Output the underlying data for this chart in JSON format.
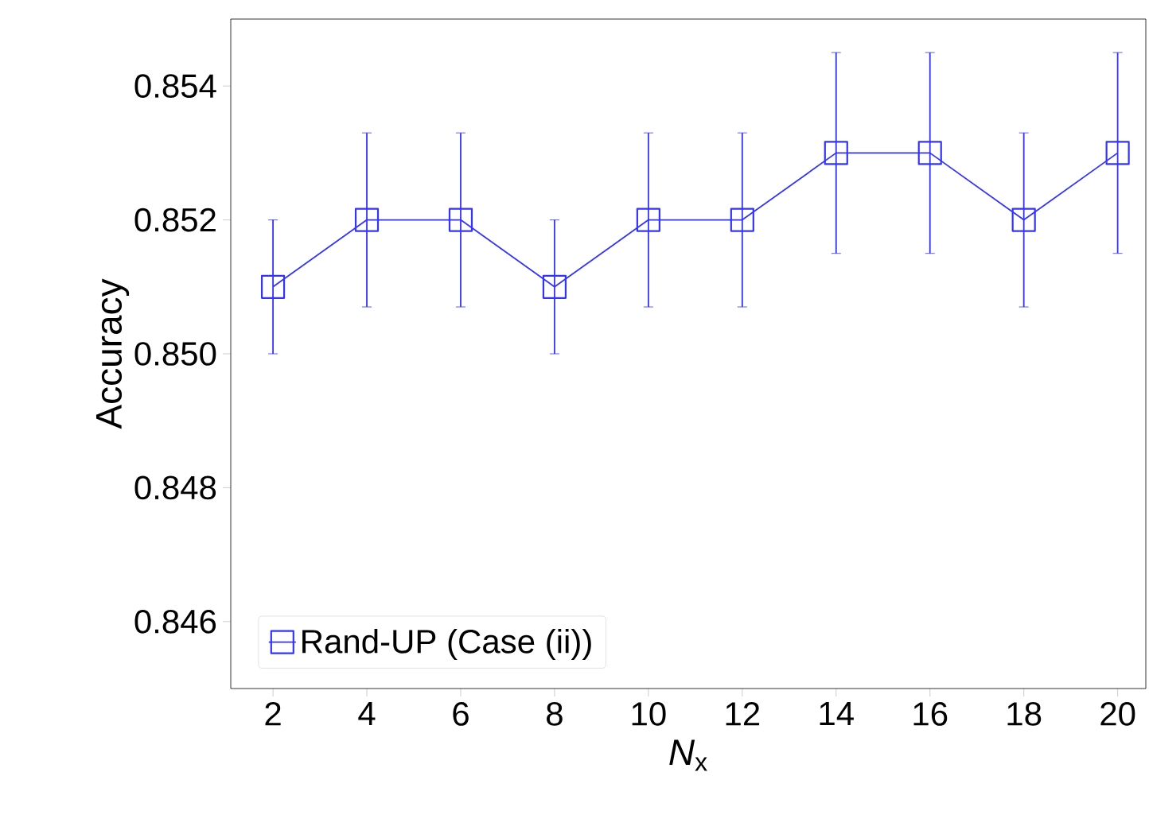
{
  "chart_data": {
    "type": "line",
    "xlabel": "*N*$_{x}$",
    "ylabel": "Accuracy",
    "x": [
      2,
      4,
      6,
      8,
      10,
      12,
      14,
      16,
      18,
      20
    ],
    "series": [
      {
        "name": "Rand-UP (Case (ii))",
        "color": "#3333ff",
        "values": [
          0.851,
          0.852,
          0.852,
          0.851,
          0.852,
          0.852,
          0.853,
          0.853,
          0.852,
          0.853
        ],
        "errors": [
          0.001,
          0.0013,
          0.0013,
          0.001,
          0.0013,
          0.0013,
          0.0015,
          0.0015,
          0.0013,
          0.0015
        ]
      }
    ],
    "xlim": [
      1.1,
      20.6
    ],
    "ylim": [
      0.845,
      0.855
    ],
    "xticks": [
      2,
      4,
      6,
      8,
      10,
      12,
      14,
      16,
      18,
      20
    ],
    "yticks": [
      0.846,
      0.848,
      {
        "value": 0.85,
        "label": "0.850"
      },
      0.852,
      0.854
    ],
    "marker": "square",
    "line_style": "solid",
    "legend": "bottom left",
    "grid": false
  }
}
